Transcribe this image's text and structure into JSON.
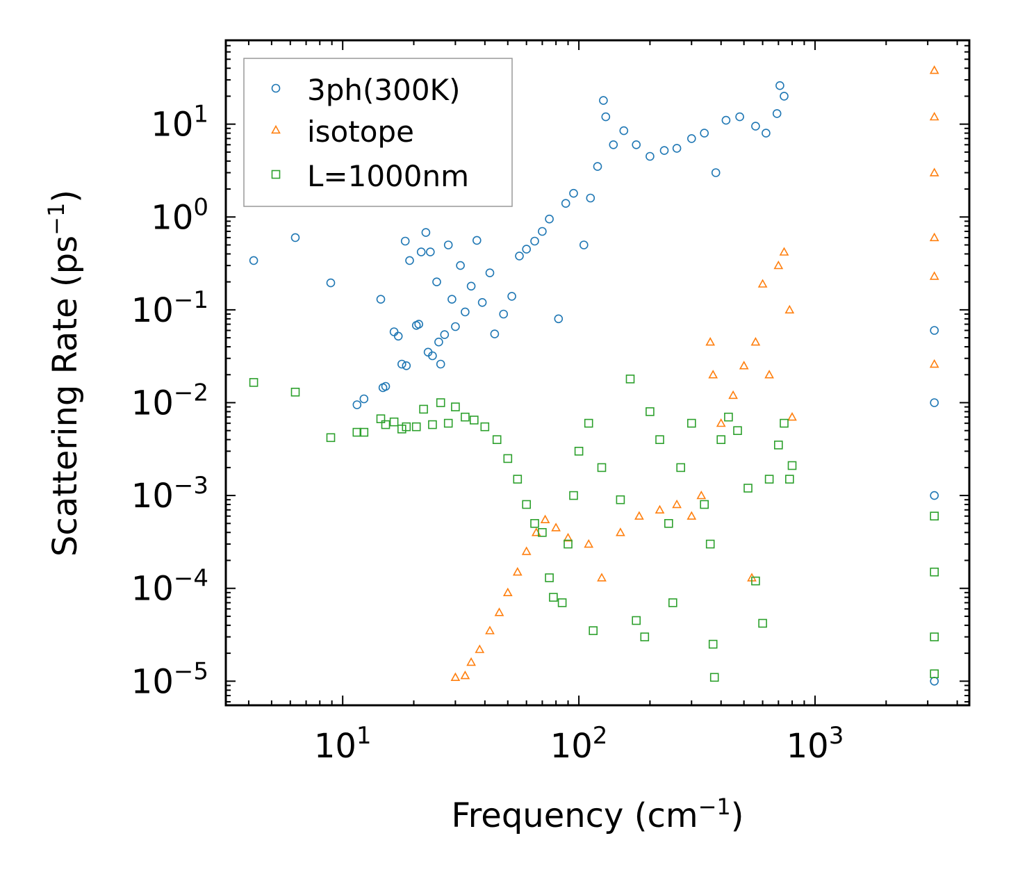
{
  "chart_data": {
    "type": "scatter",
    "title": "",
    "xlabel": {
      "main": "Frequency (cm",
      "sup": "−1",
      "tail": ")"
    },
    "ylabel": {
      "main": "Scattering Rate (ps",
      "sup": "−1",
      "tail": ")"
    },
    "xscale": "log",
    "yscale": "log",
    "xlim": [
      3.2,
      4500
    ],
    "ylim": [
      5.5e-06,
      80
    ],
    "xticks": [
      {
        "value": 10,
        "base": "10",
        "exp": "1"
      },
      {
        "value": 100,
        "base": "10",
        "exp": "2"
      },
      {
        "value": 1000,
        "base": "10",
        "exp": "3"
      }
    ],
    "yticks": [
      {
        "value": 1e-05,
        "base": "10",
        "exp": "−5"
      },
      {
        "value": 0.0001,
        "base": "10",
        "exp": "−4"
      },
      {
        "value": 0.001,
        "base": "10",
        "exp": "−3"
      },
      {
        "value": 0.01,
        "base": "10",
        "exp": "−2"
      },
      {
        "value": 0.1,
        "base": "10",
        "exp": "−1"
      },
      {
        "value": 1,
        "base": "10",
        "exp": "0"
      },
      {
        "value": 10,
        "base": "10",
        "exp": "1"
      }
    ],
    "legend_position": "top-left",
    "series": [
      {
        "name": "3ph(300K)",
        "marker": "circle",
        "color": "#1f77b4",
        "points": [
          [
            4.2,
            0.34
          ],
          [
            6.3,
            0.6
          ],
          [
            8.9,
            0.195
          ],
          [
            11.5,
            0.0095
          ],
          [
            12.3,
            0.011
          ],
          [
            14.5,
            0.13
          ],
          [
            14.8,
            0.0145
          ],
          [
            15.2,
            0.015
          ],
          [
            16.5,
            0.058
          ],
          [
            17.2,
            0.052
          ],
          [
            17.8,
            0.026
          ],
          [
            18.4,
            0.55
          ],
          [
            18.6,
            0.025
          ],
          [
            19.2,
            0.34
          ],
          [
            20.5,
            0.068
          ],
          [
            21.0,
            0.07
          ],
          [
            21.5,
            0.42
          ],
          [
            22.5,
            0.68
          ],
          [
            23.0,
            0.035
          ],
          [
            23.5,
            0.42
          ],
          [
            24.0,
            0.032
          ],
          [
            25.0,
            0.2
          ],
          [
            25.5,
            0.045
          ],
          [
            26.0,
            0.026
          ],
          [
            27.0,
            0.054
          ],
          [
            28.0,
            0.5
          ],
          [
            29.0,
            0.13
          ],
          [
            30.0,
            0.066
          ],
          [
            31.5,
            0.3
          ],
          [
            33.0,
            0.095
          ],
          [
            35.0,
            0.18
          ],
          [
            37.0,
            0.56
          ],
          [
            39.0,
            0.12
          ],
          [
            42.0,
            0.25
          ],
          [
            44.0,
            0.055
          ],
          [
            48.0,
            0.09
          ],
          [
            52.0,
            0.14
          ],
          [
            56.0,
            0.38
          ],
          [
            60.0,
            0.45
          ],
          [
            65.0,
            0.55
          ],
          [
            70.0,
            0.7
          ],
          [
            75.0,
            0.95
          ],
          [
            82.0,
            0.08
          ],
          [
            88.0,
            1.4
          ],
          [
            95.0,
            1.8
          ],
          [
            105.0,
            0.5
          ],
          [
            112.0,
            1.6
          ],
          [
            120.0,
            3.5
          ],
          [
            127.0,
            18.0
          ],
          [
            130.0,
            12.0
          ],
          [
            140.0,
            6.0
          ],
          [
            155.0,
            8.5
          ],
          [
            175.0,
            6.0
          ],
          [
            200.0,
            4.5
          ],
          [
            230.0,
            5.2
          ],
          [
            260.0,
            5.5
          ],
          [
            300.0,
            7.0
          ],
          [
            340.0,
            8.0
          ],
          [
            380.0,
            3.0
          ],
          [
            420.0,
            11.0
          ],
          [
            480.0,
            12.0
          ],
          [
            560.0,
            9.5
          ],
          [
            620.0,
            8.0
          ],
          [
            690.0,
            13.0
          ],
          [
            710.0,
            26.0
          ],
          [
            740.0,
            20.0
          ],
          [
            3200.0,
            0.06
          ],
          [
            3200.0,
            0.01
          ],
          [
            3200.0,
            0.001
          ],
          [
            3200.0,
            1e-05
          ]
        ]
      },
      {
        "name": "isotope",
        "marker": "triangle",
        "color": "#ff7f0e",
        "points": [
          [
            30.0,
            1.1e-05
          ],
          [
            33.0,
            1.15e-05
          ],
          [
            35.0,
            1.6e-05
          ],
          [
            38.0,
            2.2e-05
          ],
          [
            42.0,
            3.5e-05
          ],
          [
            46.0,
            5.5e-05
          ],
          [
            50.0,
            9e-05
          ],
          [
            55.0,
            0.00015
          ],
          [
            60.0,
            0.00025
          ],
          [
            66.0,
            0.0004
          ],
          [
            72.0,
            0.00055
          ],
          [
            80.0,
            0.00045
          ],
          [
            90.0,
            0.00035
          ],
          [
            110.0,
            0.0003
          ],
          [
            125.0,
            0.00013
          ],
          [
            150.0,
            0.0004
          ],
          [
            180.0,
            0.0006
          ],
          [
            220.0,
            0.0007
          ],
          [
            260.0,
            0.0008
          ],
          [
            300.0,
            0.0006
          ],
          [
            330.0,
            0.001
          ],
          [
            360.0,
            0.045
          ],
          [
            370.0,
            0.02
          ],
          [
            400.0,
            0.006
          ],
          [
            450.0,
            0.012
          ],
          [
            500.0,
            0.025
          ],
          [
            540.0,
            0.00013
          ],
          [
            560.0,
            0.045
          ],
          [
            600.0,
            0.19
          ],
          [
            640.0,
            0.02
          ],
          [
            700.0,
            0.3
          ],
          [
            740.0,
            0.42
          ],
          [
            780.0,
            0.1
          ],
          [
            800.0,
            0.007
          ],
          [
            3200.0,
            38.0
          ],
          [
            3200.0,
            12.0
          ],
          [
            3200.0,
            3.0
          ],
          [
            3200.0,
            0.6
          ],
          [
            3200.0,
            0.23
          ],
          [
            3200.0,
            0.026
          ]
        ]
      },
      {
        "name": "L=1000nm",
        "marker": "square",
        "color": "#2ca02c",
        "points": [
          [
            4.2,
            0.0165
          ],
          [
            6.3,
            0.013
          ],
          [
            8.9,
            0.0042
          ],
          [
            11.5,
            0.0048
          ],
          [
            12.3,
            0.0048
          ],
          [
            14.5,
            0.0067
          ],
          [
            15.2,
            0.0058
          ],
          [
            16.5,
            0.0062
          ],
          [
            17.8,
            0.0052
          ],
          [
            18.6,
            0.0055
          ],
          [
            20.5,
            0.0055
          ],
          [
            22.0,
            0.0085
          ],
          [
            24.0,
            0.0058
          ],
          [
            26.0,
            0.01
          ],
          [
            28.0,
            0.006
          ],
          [
            30.0,
            0.009
          ],
          [
            33.0,
            0.007
          ],
          [
            36.0,
            0.0065
          ],
          [
            40.0,
            0.0055
          ],
          [
            45.0,
            0.004
          ],
          [
            50.0,
            0.0025
          ],
          [
            55.0,
            0.0015
          ],
          [
            60.0,
            0.0008
          ],
          [
            65.0,
            0.0005
          ],
          [
            70.0,
            0.0004
          ],
          [
            75.0,
            0.00013
          ],
          [
            78.0,
            8e-05
          ],
          [
            85.0,
            7e-05
          ],
          [
            90.0,
            0.0003
          ],
          [
            95.0,
            0.001
          ],
          [
            100.0,
            0.003
          ],
          [
            110.0,
            0.006
          ],
          [
            115.0,
            3.5e-05
          ],
          [
            125.0,
            0.002
          ],
          [
            150.0,
            0.0009
          ],
          [
            165.0,
            0.018
          ],
          [
            175.0,
            4.5e-05
          ],
          [
            190.0,
            3e-05
          ],
          [
            200.0,
            0.008
          ],
          [
            220.0,
            0.004
          ],
          [
            240.0,
            0.0005
          ],
          [
            250.0,
            7e-05
          ],
          [
            270.0,
            0.002
          ],
          [
            300.0,
            0.006
          ],
          [
            340.0,
            0.0008
          ],
          [
            360.0,
            0.0003
          ],
          [
            370.0,
            2.5e-05
          ],
          [
            375.0,
            1.1e-05
          ],
          [
            400.0,
            0.004
          ],
          [
            430.0,
            0.007
          ],
          [
            470.0,
            0.005
          ],
          [
            520.0,
            0.0012
          ],
          [
            560.0,
            0.00012
          ],
          [
            600.0,
            4.2e-05
          ],
          [
            640.0,
            0.0015
          ],
          [
            700.0,
            0.0035
          ],
          [
            740.0,
            0.006
          ],
          [
            780.0,
            0.0015
          ],
          [
            800.0,
            0.0021
          ],
          [
            3200.0,
            0.0006
          ],
          [
            3200.0,
            0.00015
          ],
          [
            3200.0,
            3e-05
          ],
          [
            3200.0,
            1.2e-05
          ]
        ]
      }
    ]
  }
}
